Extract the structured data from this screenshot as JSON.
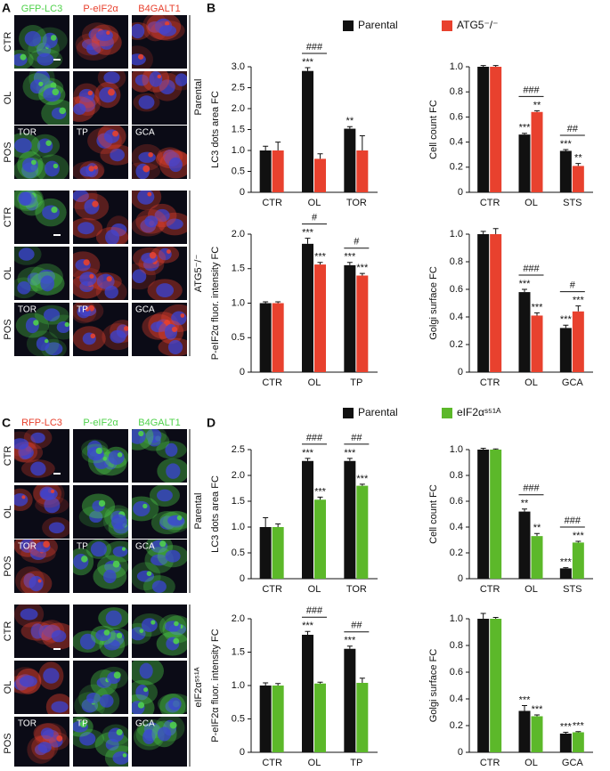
{
  "panels": [
    "A",
    "B",
    "C",
    "D"
  ],
  "image_panels": [
    {
      "channels": [
        "GFP-LC3",
        "P-eIF2α",
        "B4GALT1"
      ],
      "channel_colors": [
        "#4fd24a",
        "#e8412e",
        "#e8412e"
      ],
      "rows": [
        "CTR",
        "OL",
        "POS"
      ],
      "treatments": [
        "TOR",
        "TP",
        "GCA"
      ],
      "groups": [
        "Parental",
        "ATG5⁻/⁻"
      ]
    },
    {
      "channels": [
        "RFP-LC3",
        "P-eIF2α",
        "B4GALT1"
      ],
      "channel_colors": [
        "#e8412e",
        "#4fd24a",
        "#4fd24a"
      ],
      "rows": [
        "CTR",
        "OL",
        "POS"
      ],
      "treatments": [
        "TOR",
        "TP",
        "GCA"
      ],
      "groups": [
        "Parental",
        "eIF2αˢ⁵¹ᴬ"
      ]
    }
  ],
  "chart_data": [
    {
      "type": "bar",
      "ylabel": "LC3 dots area FC",
      "categories": [
        "CTR",
        "OL",
        "TOR"
      ],
      "ylim": [
        0,
        3
      ],
      "yticks": [
        0,
        0.5,
        {
          "value": 1,
          "label": "1.0"
        },
        1.5,
        {
          "value": 2,
          "label": "2.0"
        },
        2.5,
        {
          "value": 3,
          "label": "3.0"
        }
      ],
      "comparisons": [
        null,
        "###",
        null
      ],
      "series": [
        {
          "name": "Parental",
          "color": "#111111",
          "values": [
            1.0,
            2.9,
            1.52
          ],
          "errors": [
            0.1,
            0.08,
            0.05
          ],
          "significance": [
            null,
            "***",
            "**"
          ]
        },
        {
          "name": "ATG5⁻/⁻",
          "color": "#e8412e",
          "values": [
            1.0,
            0.8,
            1.0
          ],
          "errors": [
            0.2,
            0.12,
            0.35
          ],
          "significance": [
            null,
            null,
            null
          ]
        }
      ]
    },
    {
      "type": "bar",
      "ylabel": "Cell count FC",
      "categories": [
        "CTR",
        "OL",
        "STS"
      ],
      "ylim": [
        0,
        1
      ],
      "yticks": [
        0,
        0.2,
        0.4,
        0.6,
        0.8,
        {
          "value": 1,
          "label": "1.0"
        }
      ],
      "comparisons": [
        null,
        "###",
        "##"
      ],
      "series": [
        {
          "name": "Parental",
          "color": "#111111",
          "values": [
            1.0,
            0.46,
            0.33
          ],
          "errors": [
            0.01,
            0.01,
            0.01
          ],
          "significance": [
            null,
            "***",
            "***"
          ]
        },
        {
          "name": "ATG5⁻/⁻",
          "color": "#e8412e",
          "values": [
            1.0,
            0.64,
            0.21
          ],
          "errors": [
            0.01,
            0.01,
            0.02
          ],
          "significance": [
            null,
            "**",
            "**"
          ]
        }
      ]
    },
    {
      "type": "bar",
      "ylabel": "P-eIF2α fluor. intensity FC",
      "categories": [
        "CTR",
        "OL",
        "TP"
      ],
      "ylim": [
        0,
        2
      ],
      "yticks": [
        0,
        0.5,
        {
          "value": 1,
          "label": "1.0"
        },
        1.5,
        {
          "value": 2,
          "label": "2.0"
        }
      ],
      "comparisons": [
        null,
        "#",
        "#"
      ],
      "series": [
        {
          "name": "Parental",
          "color": "#111111",
          "values": [
            1.0,
            1.86,
            1.55
          ],
          "errors": [
            0.02,
            0.08,
            0.04
          ],
          "significance": [
            null,
            "***",
            "***"
          ]
        },
        {
          "name": "ATG5⁻/⁻",
          "color": "#e8412e",
          "values": [
            1.0,
            1.56,
            1.4
          ],
          "errors": [
            0.02,
            0.03,
            0.03
          ],
          "significance": [
            null,
            "***",
            "***"
          ]
        }
      ]
    },
    {
      "type": "bar",
      "ylabel": "Golgi surface FC",
      "categories": [
        "CTR",
        "OL",
        "GCA"
      ],
      "ylim": [
        0,
        1
      ],
      "yticks": [
        0,
        0.2,
        0.4,
        0.6,
        0.8,
        {
          "value": 1,
          "label": "1.0"
        }
      ],
      "comparisons": [
        null,
        "###",
        "#"
      ],
      "series": [
        {
          "name": "Parental",
          "color": "#111111",
          "values": [
            1.0,
            0.58,
            0.32
          ],
          "errors": [
            0.02,
            0.02,
            0.02
          ],
          "significance": [
            null,
            "***",
            "***"
          ]
        },
        {
          "name": "ATG5⁻/⁻",
          "color": "#e8412e",
          "values": [
            1.0,
            0.41,
            0.44
          ],
          "errors": [
            0.04,
            0.02,
            0.04
          ],
          "significance": [
            null,
            "***",
            "***"
          ]
        }
      ]
    },
    {
      "type": "bar",
      "ylabel": "LC3 dots area FC",
      "categories": [
        "CTR",
        "OL",
        "TOR"
      ],
      "ylim": [
        0,
        2.5
      ],
      "yticks": [
        0,
        0.5,
        {
          "value": 1,
          "label": "1.0"
        },
        1.5,
        {
          "value": 2,
          "label": "2.0"
        },
        2.5
      ],
      "comparisons": [
        null,
        "###",
        "##"
      ],
      "series": [
        {
          "name": "Parental",
          "color": "#111111",
          "values": [
            1.0,
            2.28,
            2.28
          ],
          "errors": [
            0.18,
            0.05,
            0.05
          ],
          "significance": [
            null,
            "***",
            "***"
          ]
        },
        {
          "name": "eIF2αˢ⁵¹ᴬ",
          "color": "#5cb82a",
          "values": [
            1.0,
            1.53,
            1.8
          ],
          "errors": [
            0.06,
            0.05,
            0.03
          ],
          "significance": [
            null,
            "***",
            "***"
          ]
        }
      ]
    },
    {
      "type": "bar",
      "ylabel": "Cell count FC",
      "categories": [
        "CTR",
        "OL",
        "STS"
      ],
      "ylim": [
        0,
        1
      ],
      "yticks": [
        0,
        0.2,
        0.4,
        0.6,
        0.8,
        {
          "value": 1,
          "label": "1.0"
        }
      ],
      "comparisons": [
        null,
        "###",
        "###"
      ],
      "series": [
        {
          "name": "Parental",
          "color": "#111111",
          "values": [
            1.0,
            0.52,
            0.08
          ],
          "errors": [
            0.01,
            0.02,
            0.005
          ],
          "significance": [
            null,
            "**",
            "***"
          ]
        },
        {
          "name": "eIF2αˢ⁵¹ᴬ",
          "color": "#5cb82a",
          "values": [
            1.0,
            0.33,
            0.28
          ],
          "errors": [
            0.005,
            0.02,
            0.01
          ],
          "significance": [
            null,
            "**",
            "***"
          ]
        }
      ]
    },
    {
      "type": "bar",
      "ylabel": "P-eIF2α fluor. intensity FC",
      "categories": [
        "CTR",
        "OL",
        "TP"
      ],
      "ylim": [
        0,
        2
      ],
      "yticks": [
        0,
        0.5,
        {
          "value": 1,
          "label": "1.0"
        },
        1.5,
        {
          "value": 2,
          "label": "2.0"
        }
      ],
      "comparisons": [
        null,
        "###",
        "##"
      ],
      "series": [
        {
          "name": "Parental",
          "color": "#111111",
          "values": [
            1.0,
            1.76,
            1.55
          ],
          "errors": [
            0.04,
            0.05,
            0.04
          ],
          "significance": [
            null,
            "***",
            "***"
          ]
        },
        {
          "name": "eIF2αˢ⁵¹ᴬ",
          "color": "#5cb82a",
          "values": [
            1.0,
            1.03,
            1.04
          ],
          "errors": [
            0.03,
            0.02,
            0.07
          ],
          "significance": [
            null,
            null,
            null
          ]
        }
      ]
    },
    {
      "type": "bar",
      "ylabel": "Golgi surface FC",
      "categories": [
        "CTR",
        "OL",
        "GCA"
      ],
      "ylim": [
        0,
        1
      ],
      "yticks": [
        0,
        0.2,
        0.4,
        0.6,
        0.8,
        {
          "value": 1,
          "label": "1.0"
        }
      ],
      "comparisons": [
        null,
        null,
        null
      ],
      "series": [
        {
          "name": "Parental",
          "color": "#111111",
          "values": [
            1.0,
            0.31,
            0.14
          ],
          "errors": [
            0.04,
            0.04,
            0.01
          ],
          "significance": [
            null,
            "***",
            "***"
          ]
        },
        {
          "name": "eIF2αˢ⁵¹ᴬ",
          "color": "#5cb82a",
          "values": [
            1.0,
            0.27,
            0.15
          ],
          "errors": [
            0.01,
            0.01,
            0.005
          ],
          "significance": [
            null,
            "***",
            "***"
          ]
        }
      ]
    }
  ]
}
